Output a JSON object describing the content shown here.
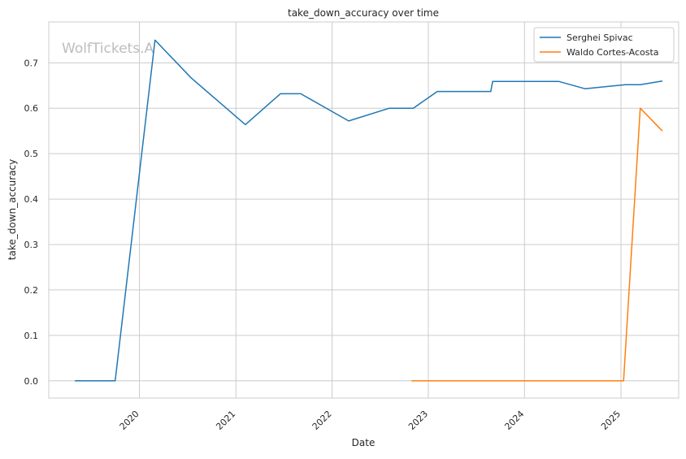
{
  "chart_data": {
    "type": "line",
    "title": "take_down_accuracy over time",
    "xlabel": "Date",
    "ylabel": "take_down_accuracy",
    "watermark": "WolfTickets.A",
    "x_ticks": [
      "2020",
      "2021",
      "2022",
      "2023",
      "2024",
      "2025"
    ],
    "y_ticks": [
      "0.0",
      "0.1",
      "0.2",
      "0.3",
      "0.4",
      "0.5",
      "0.6",
      "0.7"
    ],
    "xlim": [
      "2019-01-22",
      "2025-08-08"
    ],
    "ylim": [
      -0.038,
      0.79
    ],
    "grid": true,
    "legend_position": "top-right",
    "series": [
      {
        "name": "Serghei Spivac",
        "color": "#1f77b4",
        "points": [
          {
            "x": "2019-05-01",
            "y": 0.0
          },
          {
            "x": "2019-10-01",
            "y": 0.0
          },
          {
            "x": "2020-02-29",
            "y": 0.75
          },
          {
            "x": "2020-07-15",
            "y": 0.667
          },
          {
            "x": "2021-02-06",
            "y": 0.564
          },
          {
            "x": "2021-06-19",
            "y": 0.632
          },
          {
            "x": "2021-09-04",
            "y": 0.632
          },
          {
            "x": "2022-03-05",
            "y": 0.572
          },
          {
            "x": "2022-08-06",
            "y": 0.6
          },
          {
            "x": "2022-11-05",
            "y": 0.6
          },
          {
            "x": "2023-02-04",
            "y": 0.637
          },
          {
            "x": "2023-08-26",
            "y": 0.637
          },
          {
            "x": "2023-09-02",
            "y": 0.659
          },
          {
            "x": "2024-05-11",
            "y": 0.659
          },
          {
            "x": "2024-08-17",
            "y": 0.643
          },
          {
            "x": "2025-01-18",
            "y": 0.652
          },
          {
            "x": "2025-03-15",
            "y": 0.652
          },
          {
            "x": "2025-06-07",
            "y": 0.66
          }
        ]
      },
      {
        "name": "Waldo Cortes-Acosta",
        "color": "#ff7f0e",
        "points": [
          {
            "x": "2022-10-29",
            "y": 0.0
          },
          {
            "x": "2025-01-11",
            "y": 0.0
          },
          {
            "x": "2025-03-15",
            "y": 0.6
          },
          {
            "x": "2025-06-07",
            "y": 0.55
          }
        ]
      }
    ]
  }
}
